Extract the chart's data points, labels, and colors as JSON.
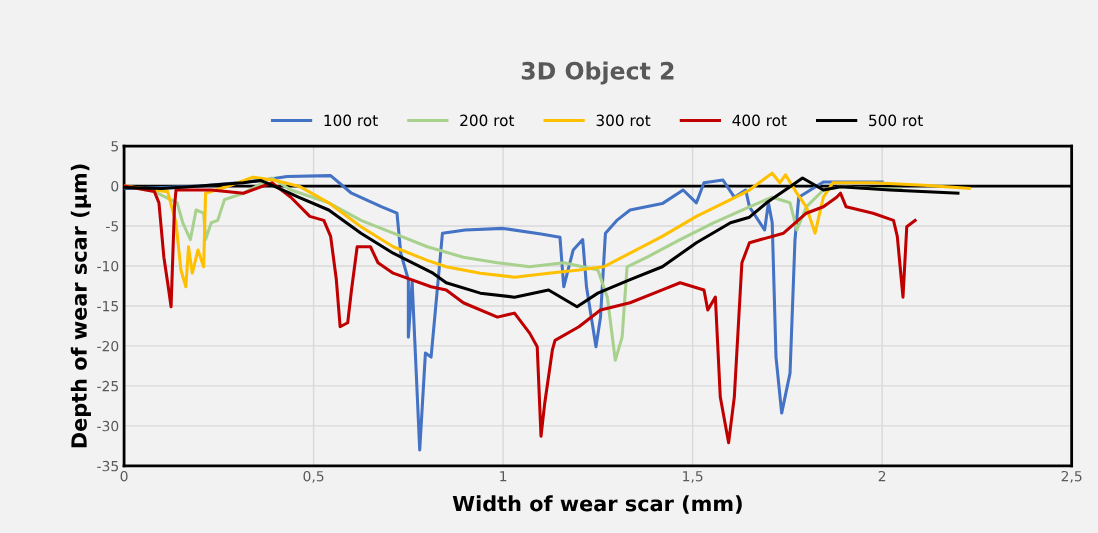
{
  "chart_data": {
    "type": "line",
    "title": "3D Object 2",
    "xlabel": "Width of wear scar (mm)",
    "ylabel": "Depth of wear scar (µm)",
    "xlim": [
      0,
      2.5
    ],
    "xticks": [
      0,
      {
        "value": 0.5,
        "label": "0,5"
      },
      1,
      {
        "value": 1.5,
        "label": "1,5"
      },
      2,
      {
        "value": 2.5,
        "label": "2,5"
      }
    ],
    "ylim": [
      -35,
      5
    ],
    "yticks": [
      -35,
      -30,
      -25,
      -20,
      -15,
      -10,
      -5,
      0,
      5
    ],
    "grid": true,
    "legend": "top",
    "marker": "none",
    "line_style": "solid",
    "ref_lines": [
      {
        "axis": "y",
        "value": 0,
        "color": "#000000"
      }
    ],
    "series": [
      {
        "name": "100 rot",
        "color": "#4472c4",
        "x": [
          0,
          0.1,
          0.2,
          0.3,
          0.36,
          0.43,
          0.545,
          0.6,
          0.68,
          0.72,
          0.73,
          0.75,
          0.75,
          0.76,
          0.78,
          0.795,
          0.81,
          0.84,
          0.9,
          1.0,
          1.1,
          1.15,
          1.16,
          1.185,
          1.21,
          1.22,
          1.245,
          1.257,
          1.27,
          1.3,
          1.335,
          1.42,
          1.475,
          1.51,
          1.53,
          1.58,
          1.61,
          1.64,
          1.65,
          1.69,
          1.7,
          1.71,
          1.72,
          1.735,
          1.757,
          1.77,
          1.78,
          1.845,
          2.0
        ],
        "values": [
          -0.3,
          -0.2,
          0,
          0.4,
          0.7,
          1.2,
          1.3,
          -0.9,
          -2.6,
          -3.4,
          -8.4,
          -11.7,
          -18.9,
          -12,
          -33,
          -20.9,
          -21.4,
          -5.9,
          -5.5,
          -5.3,
          -6,
          -6.4,
          -12.6,
          -8,
          -6.7,
          -12.6,
          -20.1,
          -16.4,
          -5.9,
          -4.3,
          -3,
          -2.2,
          -0.5,
          -2.1,
          0.4,
          0.75,
          -1.4,
          -0.5,
          -2.6,
          -5.5,
          -2.1,
          -4.6,
          -21.4,
          -28.4,
          -23.4,
          -6.8,
          -1.4,
          0.5,
          0.5
        ]
      },
      {
        "name": "200 rot",
        "color": "#a9d18e",
        "x": [
          0,
          0.08,
          0.14,
          0.155,
          0.175,
          0.19,
          0.21,
          0.215,
          0.23,
          0.247,
          0.265,
          0.315,
          0.39,
          0.44,
          0.54,
          0.625,
          0.71,
          0.8,
          0.895,
          0.985,
          1.07,
          1.16,
          1.25,
          1.275,
          1.296,
          1.314,
          1.327,
          1.38,
          1.467,
          1.555,
          1.65,
          1.71,
          1.757,
          1.775,
          1.8,
          1.845,
          1.89,
          1.976,
          2.05
        ],
        "values": [
          0,
          -0.7,
          -2.1,
          -4.6,
          -6.7,
          -3,
          -3.4,
          -6.7,
          -4.6,
          -4.3,
          -1.7,
          -0.9,
          1,
          -0.5,
          -2.1,
          -4.3,
          -5.9,
          -7.6,
          -8.9,
          -9.6,
          -10.1,
          -9.6,
          -10.5,
          -13.9,
          -21.8,
          -18.9,
          -10.1,
          -8.9,
          -6.7,
          -4.6,
          -2.6,
          -1.4,
          -2.1,
          -5.5,
          -2.6,
          -0.5,
          -0.1,
          -0.3,
          -0.4
        ]
      },
      {
        "name": "300 rot",
        "color": "#ffc000",
        "x": [
          0,
          0.115,
          0.137,
          0.15,
          0.163,
          0.17,
          0.18,
          0.195,
          0.21,
          0.215,
          0.27,
          0.34,
          0.4,
          0.465,
          0.54,
          0.625,
          0.71,
          0.8,
          0.85,
          0.94,
          1.03,
          1.12,
          1.2,
          1.265,
          1.335,
          1.42,
          1.51,
          1.6,
          1.65,
          1.695,
          1.71,
          1.73,
          1.745,
          1.775,
          1.8,
          1.823,
          1.845,
          1.87,
          1.976,
          2.11,
          2.23
        ],
        "values": [
          0,
          -0.7,
          -4.6,
          -10.5,
          -12.6,
          -7.6,
          -10.9,
          -8,
          -10.1,
          -0.9,
          -0.1,
          1.1,
          0.7,
          -0.1,
          -2.1,
          -5.1,
          -7.6,
          -9.3,
          -10.1,
          -10.9,
          -11.4,
          -10.9,
          -10.5,
          -10.1,
          -8.4,
          -6.3,
          -3.8,
          -1.7,
          -0.5,
          1.1,
          1.6,
          0.4,
          1.4,
          -0.9,
          -2.6,
          -5.9,
          -1.4,
          0.4,
          0.4,
          0.1,
          -0.3
        ]
      },
      {
        "name": "400 rot",
        "color": "#c00000",
        "x": [
          0,
          0.08,
          0.092,
          0.105,
          0.115,
          0.124,
          0.133,
          0.137,
          0.23,
          0.315,
          0.39,
          0.44,
          0.49,
          0.527,
          0.545,
          0.56,
          0.57,
          0.59,
          0.6,
          0.615,
          0.65,
          0.67,
          0.71,
          0.81,
          0.85,
          0.895,
          0.985,
          1.03,
          1.07,
          1.09,
          1.1,
          1.11,
          1.13,
          1.137,
          1.2,
          1.257,
          1.335,
          1.42,
          1.467,
          1.53,
          1.54,
          1.56,
          1.573,
          1.595,
          1.61,
          1.63,
          1.65,
          1.68,
          1.74,
          1.8,
          1.845,
          1.88,
          1.89,
          1.905,
          1.976,
          2.03,
          2.04,
          2.055,
          2.065,
          2.087
        ],
        "values": [
          0,
          -0.7,
          -2.1,
          -8.9,
          -12.1,
          -15.1,
          -2.6,
          -0.5,
          -0.5,
          -0.9,
          0.4,
          -1.4,
          -3.8,
          -4.3,
          -6.3,
          -11.7,
          -17.6,
          -17.1,
          -13,
          -7.6,
          -7.6,
          -9.6,
          -10.9,
          -12.6,
          -13,
          -14.6,
          -16.4,
          -15.9,
          -18.4,
          -20.1,
          -31.3,
          -27.1,
          -20.5,
          -19.3,
          -17.6,
          -15.5,
          -14.6,
          -13,
          -12.1,
          -13,
          -15.5,
          -13.9,
          -26.4,
          -32.1,
          -26.4,
          -9.6,
          -7.1,
          -6.7,
          -5.9,
          -3.4,
          -2.6,
          -1.4,
          -0.9,
          -2.6,
          -3.4,
          -4.3,
          -6.3,
          -13.9,
          -5.1,
          -4.3
        ]
      },
      {
        "name": "500 rot",
        "color": "#000000",
        "x": [
          0,
          0.1,
          0.2,
          0.315,
          0.36,
          0.4,
          0.46,
          0.54,
          0.625,
          0.71,
          0.815,
          0.85,
          0.94,
          1.03,
          1.12,
          1.195,
          1.25,
          1.335,
          1.42,
          1.51,
          1.6,
          1.65,
          1.695,
          1.757,
          1.79,
          1.845,
          1.89,
          2.02,
          2.2
        ],
        "values": [
          -0.2,
          -0.3,
          0,
          0.4,
          0.7,
          -0.1,
          -1.4,
          -3,
          -5.9,
          -8.4,
          -10.9,
          -12.1,
          -13.4,
          -13.9,
          -13,
          -15.1,
          -13.4,
          -11.7,
          -10.1,
          -7.1,
          -4.6,
          -3.9,
          -2.1,
          -0.1,
          1,
          -0.5,
          -0.1,
          -0.5,
          -0.9
        ]
      }
    ]
  }
}
